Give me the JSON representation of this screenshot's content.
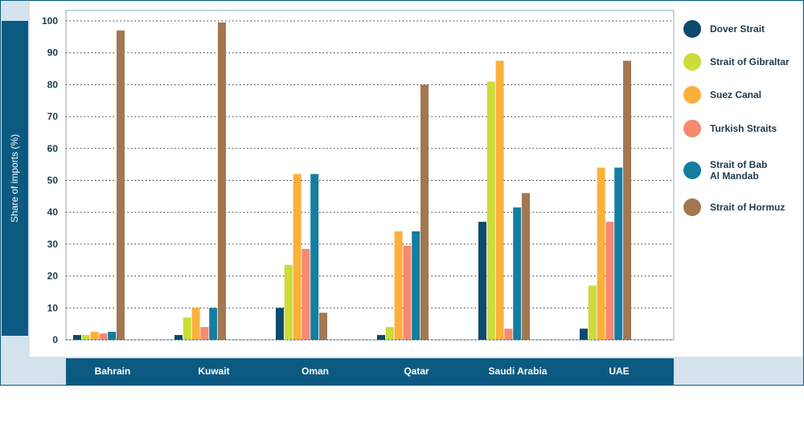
{
  "chart_data": {
    "type": "bar",
    "ylabel": "Share of imports (%)",
    "xlabel": "",
    "ylim": [
      0,
      100
    ],
    "yticks": [
      0,
      10,
      20,
      30,
      40,
      50,
      60,
      70,
      80,
      90,
      100
    ],
    "grid": "dotted horizontal",
    "legend_position": "right",
    "categories": [
      "Bahrain",
      "Kuwait",
      "Oman",
      "Qatar",
      "Saudi Arabia",
      "UAE"
    ],
    "series": [
      {
        "name": "Dover Strait",
        "color": "#0c4a6e",
        "values": [
          1.5,
          1.5,
          10,
          1.5,
          37,
          3.5
        ]
      },
      {
        "name": "Strait of Gibraltar",
        "color": "#cddc39",
        "values": [
          1.5,
          7,
          23.5,
          4,
          81,
          17
        ]
      },
      {
        "name": "Suez Canal",
        "color": "#fbb03b",
        "values": [
          2.5,
          10,
          52,
          34,
          87.5,
          54
        ]
      },
      {
        "name": "Turkish Straits",
        "color": "#f6896e",
        "values": [
          2,
          4,
          28.5,
          29.5,
          3.5,
          37
        ]
      },
      {
        "name": "Strait of Bab\nAl Mandab",
        "color": "#137ea0",
        "values": [
          2.5,
          10,
          52,
          34,
          41.5,
          54
        ]
      },
      {
        "name": "Strait of Hormuz",
        "color": "#a27752",
        "values": [
          97,
          99.5,
          8.5,
          80,
          46,
          87.5
        ]
      }
    ]
  }
}
